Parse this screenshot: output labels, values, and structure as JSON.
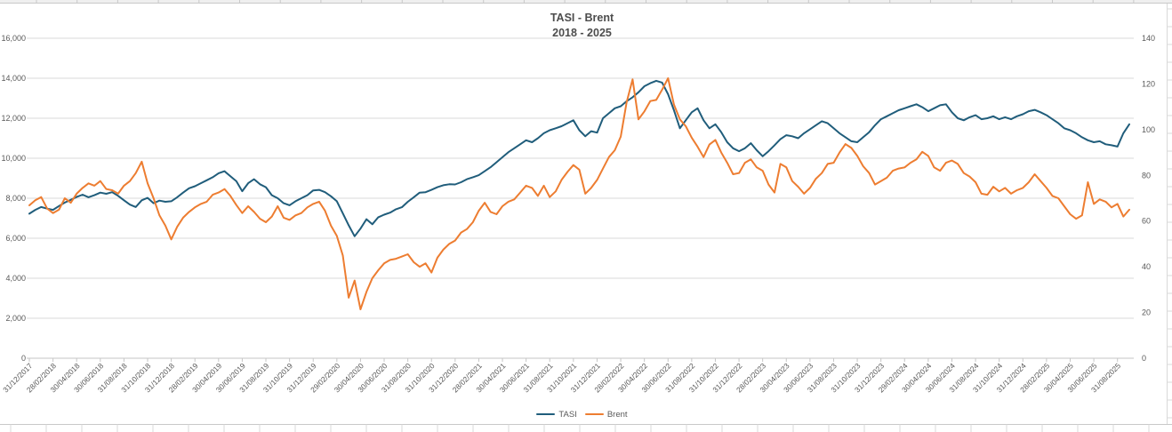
{
  "colors": {
    "tasi_line": "#205D7B",
    "brent_line": "#ED7D31",
    "gridline": "#DADADA",
    "axis_line": "#C6C6C6",
    "axis_text": "#595959",
    "title_text": "#4D4D4D",
    "sheet_line": "#D9D9D9"
  },
  "chart_data": {
    "type": "line",
    "title": "TASI - Brent",
    "subtitle": "2018 - 2025",
    "legend_position": "bottom",
    "grid": "horizontal-on",
    "left_axis": {
      "min": 0,
      "max": 16000,
      "step": 2000,
      "tick_labels": [
        "0",
        "2,000",
        "4,000",
        "6,000",
        "8,000",
        "10,000",
        "12,000",
        "14,000",
        "16,000"
      ]
    },
    "right_axis": {
      "min": 0,
      "max": 140,
      "step": 20,
      "tick_labels": [
        "0",
        "20",
        "40",
        "60",
        "80",
        "100",
        "120",
        "140"
      ]
    },
    "points_per_tick": 4,
    "x_tick_labels": [
      "31/12/2017",
      "28/02/2018",
      "30/04/2018",
      "30/06/2018",
      "31/08/2018",
      "31/10/2018",
      "31/12/2018",
      "28/02/2019",
      "30/04/2019",
      "30/06/2019",
      "31/08/2019",
      "31/10/2019",
      "31/12/2019",
      "29/02/2020",
      "30/04/2020",
      "30/06/2020",
      "31/08/2020",
      "31/10/2020",
      "31/12/2020",
      "28/02/2021",
      "30/04/2021",
      "30/06/2021",
      "31/08/2021",
      "31/10/2021",
      "31/12/2021",
      "28/02/2022",
      "30/04/2022",
      "30/06/2022",
      "31/08/2022",
      "31/10/2022",
      "31/12/2022",
      "28/02/2023",
      "30/04/2023",
      "30/06/2023",
      "31/08/2023",
      "31/10/2023",
      "31/12/2023",
      "29/02/2024",
      "30/04/2024",
      "30/06/2024",
      "31/08/2024",
      "31/10/2024",
      "31/12/2024",
      "28/02/2025",
      "30/04/2025",
      "30/06/2025",
      "31/08/2025"
    ],
    "series": [
      {
        "name": "TASI",
        "axis": "left",
        "color": "#205D7B",
        "values": [
          7226,
          7420,
          7560,
          7480,
          7420,
          7610,
          7780,
          7920,
          8060,
          8180,
          8050,
          8150,
          8280,
          8220,
          8300,
          8120,
          7900,
          7680,
          7560,
          7900,
          8020,
          7750,
          7880,
          7820,
          7850,
          8050,
          8280,
          8500,
          8600,
          8750,
          8900,
          9050,
          9250,
          9350,
          9100,
          8850,
          8350,
          8750,
          8950,
          8700,
          8550,
          8150,
          8000,
          7750,
          7650,
          7850,
          8000,
          8150,
          8390,
          8420,
          8300,
          8100,
          7850,
          7250,
          6650,
          6100,
          6480,
          6950,
          6700,
          7050,
          7180,
          7280,
          7450,
          7550,
          7820,
          8050,
          8280,
          8300,
          8420,
          8550,
          8650,
          8700,
          8690,
          8800,
          8950,
          9050,
          9150,
          9350,
          9550,
          9800,
          10050,
          10300,
          10500,
          10700,
          10900,
          10800,
          11000,
          11250,
          11400,
          11500,
          11600,
          11750,
          11900,
          11400,
          11100,
          11350,
          11280,
          12000,
          12250,
          12500,
          12600,
          12850,
          13050,
          13300,
          13600,
          13750,
          13870,
          13780,
          13200,
          12400,
          11500,
          11900,
          12300,
          12500,
          11900,
          11500,
          11700,
          11300,
          10800,
          10500,
          10350,
          10500,
          10750,
          10400,
          10100,
          10350,
          10650,
          10950,
          11150,
          11100,
          11000,
          11250,
          11450,
          11650,
          11850,
          11750,
          11500,
          11250,
          11050,
          10850,
          10800,
          11050,
          11300,
          11650,
          11950,
          12100,
          12250,
          12400,
          12500,
          12600,
          12700,
          12550,
          12350,
          12500,
          12650,
          12700,
          12300,
          12000,
          11900,
          12050,
          12150,
          11950,
          12000,
          12100,
          11950,
          12050,
          11950,
          12100,
          12200,
          12350,
          12420,
          12300,
          12150,
          11950,
          11750,
          11500,
          11400,
          11250,
          11050,
          10900,
          10800,
          10850,
          10700,
          10650,
          10580,
          11250,
          11700
        ]
      },
      {
        "name": "Brent",
        "axis": "right",
        "color": "#ED7D31",
        "values": [
          66.9,
          69.1,
          70.5,
          65.5,
          63.5,
          65,
          70,
          68,
          72,
          74.5,
          76.5,
          75.5,
          77.5,
          74,
          73.5,
          72,
          75.5,
          77.5,
          81,
          86,
          76.5,
          70,
          62.5,
          58,
          52,
          57.5,
          61.5,
          64,
          66,
          67.5,
          68.5,
          71.5,
          72.5,
          74,
          71,
          67,
          63.5,
          66.5,
          64,
          61,
          59.5,
          62,
          66.5,
          61.5,
          60.5,
          62.5,
          63.5,
          66,
          67.5,
          68.5,
          64.5,
          58,
          53.5,
          45,
          26.5,
          34,
          21.4,
          29,
          35,
          38.5,
          41.5,
          43,
          43.5,
          44.5,
          45.5,
          42,
          40,
          41.5,
          37.5,
          44,
          47.5,
          50,
          51.5,
          55,
          56.5,
          59.5,
          64.5,
          68,
          64,
          63,
          66.5,
          68.5,
          69.5,
          72.5,
          75.5,
          74.5,
          71,
          75.5,
          70.5,
          73,
          78,
          81.5,
          84.5,
          82.5,
          72,
          74.5,
          78,
          83,
          88,
          91,
          97,
          112,
          122,
          104.5,
          108,
          112.5,
          113,
          117.5,
          122.5,
          111,
          104.5,
          101.5,
          96.5,
          92.5,
          88,
          93.5,
          95.5,
          90,
          85.5,
          80.5,
          81,
          85.5,
          87,
          83.5,
          82,
          76,
          72.5,
          85,
          83.5,
          77.5,
          75,
          72,
          74.5,
          78.5,
          81,
          85,
          85.5,
          90,
          93.7,
          92,
          88.5,
          84,
          81,
          76,
          77.5,
          79,
          82,
          83,
          83.5,
          85.5,
          87,
          90.3,
          88.5,
          83.5,
          82,
          85.5,
          86.5,
          85,
          81,
          79.5,
          77,
          72,
          71.5,
          75,
          73,
          74.5,
          72,
          73.5,
          74.5,
          77,
          80.5,
          77.5,
          74.5,
          71,
          70,
          66.5,
          63,
          61,
          62.5,
          77,
          67.5,
          69.5,
          68.5,
          66,
          67.5,
          62,
          65
        ]
      }
    ]
  }
}
